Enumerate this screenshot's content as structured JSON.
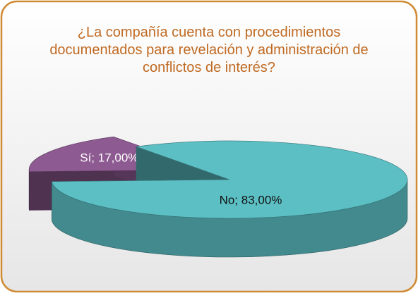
{
  "chart_data": {
    "type": "pie3d",
    "title": "¿La compañía cuenta con procedimientos documentados para revelación y administración de conflictos de interés?",
    "values": [
      17,
      83
    ],
    "value_labels": [
      "Sí; 17,00%",
      "No; 83,00%"
    ],
    "colors": [
      "#8e5a92",
      "#5bbfc4"
    ]
  }
}
